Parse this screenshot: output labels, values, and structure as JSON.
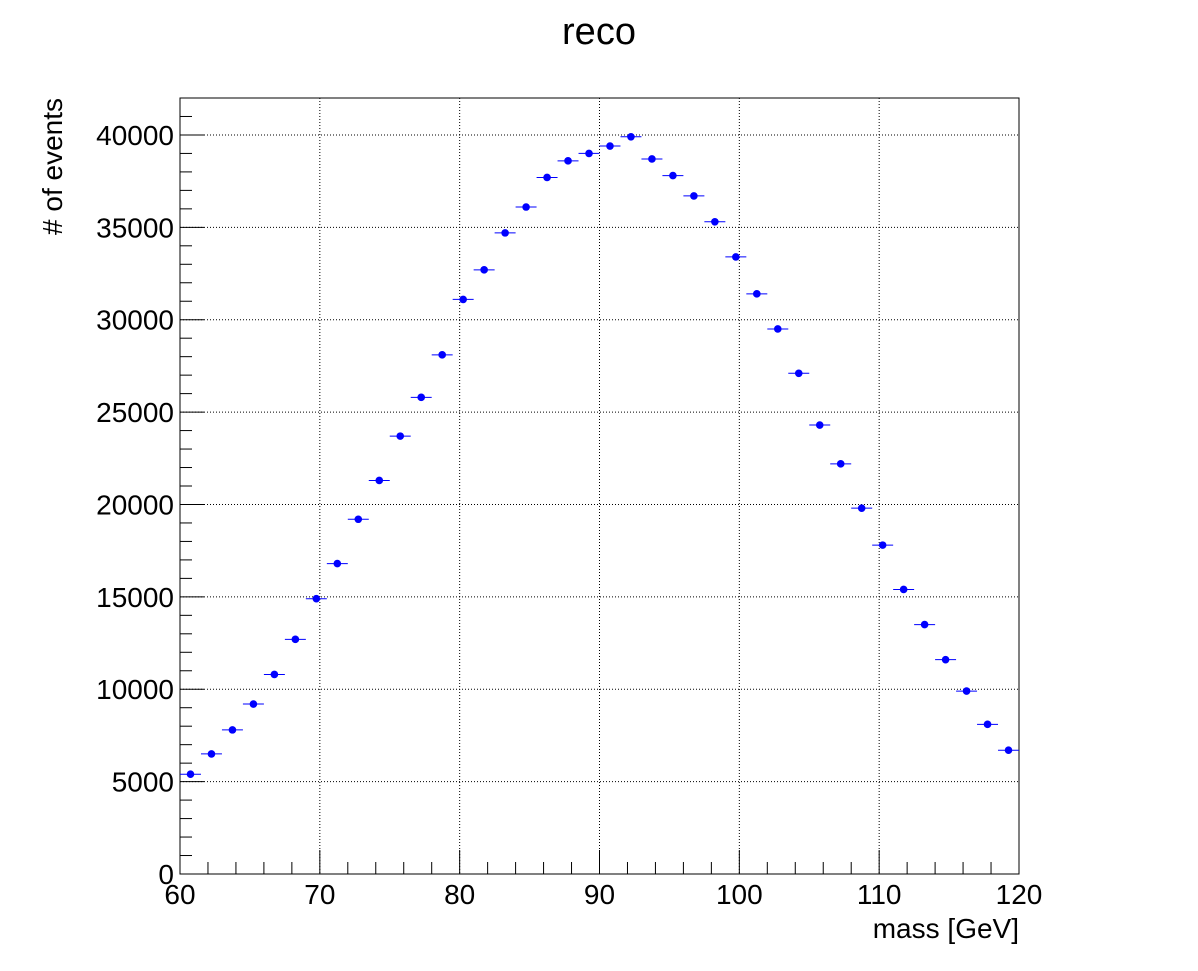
{
  "chart_data": {
    "type": "scatter",
    "title": "reco",
    "xlabel": "mass [GeV]",
    "ylabel": "# of events",
    "xlim": [
      60,
      120
    ],
    "ylim": [
      0,
      42000
    ],
    "x_ticks": [
      60,
      70,
      80,
      90,
      100,
      110,
      120
    ],
    "y_ticks": [
      0,
      5000,
      10000,
      15000,
      20000,
      25000,
      30000,
      35000,
      40000
    ],
    "grid": true,
    "marker_color": "#0000ff",
    "bin_width": 1.5,
    "series": [
      {
        "x": [
          60.75,
          62.25,
          63.75,
          65.25,
          66.75,
          68.25,
          69.75,
          71.25,
          72.75,
          74.25,
          75.75,
          77.25,
          78.75,
          80.25,
          81.75,
          83.25,
          84.75,
          86.25,
          87.75,
          89.25,
          90.75,
          92.25,
          93.75,
          95.25,
          96.75,
          98.25,
          99.75,
          101.25,
          102.75,
          104.25,
          105.75,
          107.25,
          108.75,
          110.25,
          111.75,
          113.25,
          114.75,
          116.25,
          117.75,
          119.25
        ],
        "values": [
          5400,
          6500,
          7800,
          9200,
          10800,
          12700,
          14900,
          16800,
          19200,
          21300,
          23700,
          25800,
          28100,
          31100,
          32700,
          34700,
          36100,
          37700,
          38600,
          39000,
          39400,
          39900,
          38700,
          37800,
          36700,
          35300,
          33400,
          31400,
          29500,
          27100,
          24300,
          22200,
          19800,
          17800,
          15400,
          13500,
          11600,
          9900,
          8100,
          6700
        ]
      }
    ]
  }
}
